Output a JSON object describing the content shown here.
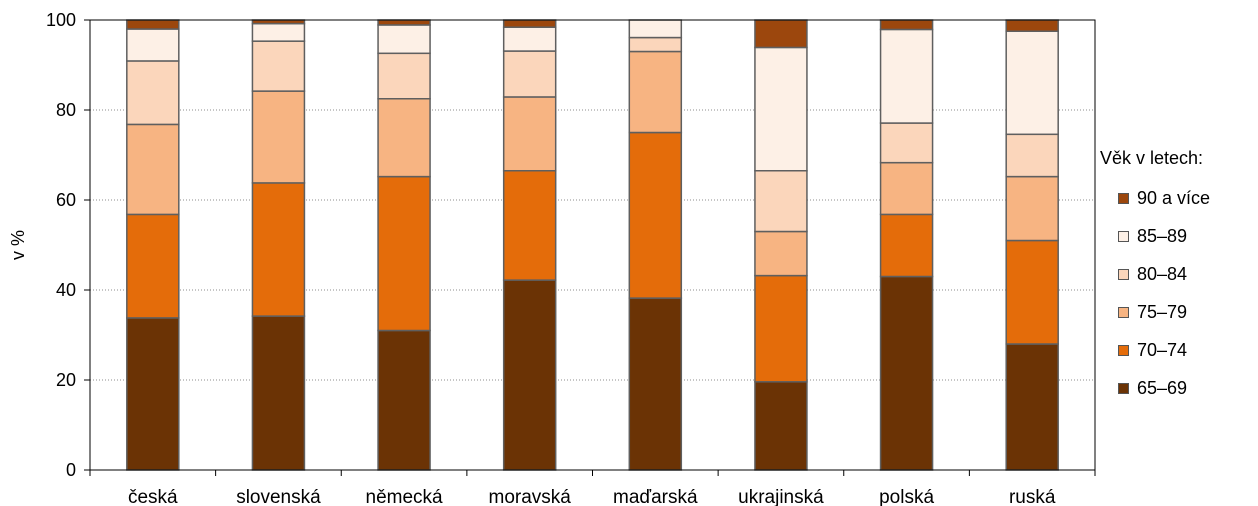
{
  "chart_data": {
    "type": "bar",
    "stacked": true,
    "ylabel": "v %",
    "ylim": [
      0,
      100
    ],
    "yticks": [
      0,
      20,
      40,
      60,
      80,
      100
    ],
    "grid": "horizontal dotted",
    "legend_title": "Věk v letech:",
    "legend_placement": "right",
    "categories": [
      "česká",
      "slovenská",
      "německá",
      "moravská",
      "maďarská",
      "ukrajinská",
      "polská",
      "ruská"
    ],
    "series": [
      {
        "name": "65–69",
        "color": "#6b3305",
        "values": [
          33.8,
          34.2,
          31.0,
          42.2,
          38.2,
          19.6,
          43.0,
          28.0
        ]
      },
      {
        "name": "70–74",
        "color": "#e46c0a",
        "values": [
          23.0,
          29.6,
          34.2,
          24.3,
          36.8,
          23.6,
          13.8,
          23.0
        ]
      },
      {
        "name": "75–79",
        "color": "#f7b482",
        "values": [
          20.0,
          20.4,
          17.3,
          16.4,
          18.0,
          9.8,
          11.5,
          14.2
        ]
      },
      {
        "name": "80–84",
        "color": "#fbd6bb",
        "values": [
          14.1,
          11.1,
          10.1,
          10.2,
          3.1,
          13.5,
          8.8,
          9.4
        ]
      },
      {
        "name": "85–89",
        "color": "#fdf0e6",
        "values": [
          7.1,
          3.9,
          6.3,
          5.3,
          3.9,
          27.4,
          20.8,
          22.9
        ]
      },
      {
        "name": "90 a více",
        "color": "#9c470d",
        "values": [
          2.0,
          0.8,
          1.1,
          1.6,
          0.0,
          6.1,
          2.1,
          2.5
        ]
      }
    ]
  }
}
